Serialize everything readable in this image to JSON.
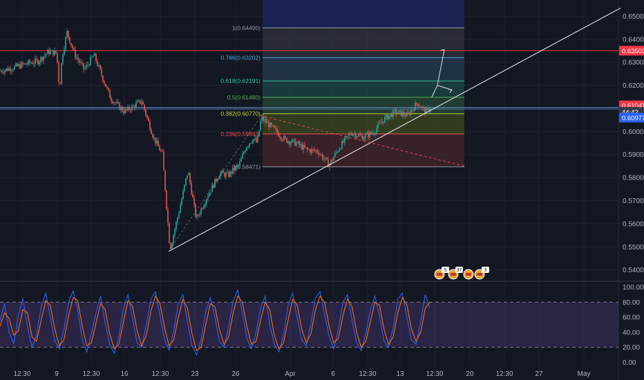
{
  "colors": {
    "background": "#131722",
    "grid": "#1e222d",
    "up": "#26a69a",
    "down": "#ef5350",
    "axis_text": "#b2b5be",
    "horizontal_red": "#f23645",
    "horizontal_blue": "#5b7fbf",
    "trendline": "#e0e3eb",
    "stoch_k": "#2962ff",
    "stoch_d": "#ff6d00",
    "stoch_band": "#7e57c2"
  },
  "chart_data": [
    {
      "type": "candlestick",
      "title": "",
      "x_tick_labels": [
        "12:30",
        "9",
        "12:30",
        "16",
        "12:30",
        "23",
        "26",
        "Apr",
        "6",
        "12:30",
        "13",
        "12:30",
        "20",
        "12:30",
        "27",
        "May"
      ],
      "y_tick_labels": [
        "0.65000",
        "0.64000",
        "0.63000",
        "0.62000",
        "0.61000",
        "0.60000",
        "0.59000",
        "0.58000",
        "0.57000",
        "0.56000",
        "0.55000",
        "0.54000"
      ],
      "ylim": [
        0.536,
        0.657
      ],
      "grid": true,
      "price_path": [
        [
          0,
          0.6262
        ],
        [
          20,
          0.6278
        ],
        [
          40,
          0.6295
        ],
        [
          55,
          0.6305
        ],
        [
          70,
          0.6345
        ],
        [
          82,
          0.634
        ],
        [
          86,
          0.618
        ],
        [
          90,
          0.633
        ],
        [
          97,
          0.643
        ],
        [
          108,
          0.6335
        ],
        [
          122,
          0.6268
        ],
        [
          136,
          0.6332
        ],
        [
          146,
          0.6252
        ],
        [
          160,
          0.6145
        ],
        [
          180,
          0.6085
        ],
        [
          205,
          0.6132
        ],
        [
          222,
          0.5975
        ],
        [
          235,
          0.59
        ],
        [
          246,
          0.549
        ],
        [
          258,
          0.564
        ],
        [
          272,
          0.583
        ],
        [
          284,
          0.562
        ],
        [
          300,
          0.572
        ],
        [
          318,
          0.582
        ],
        [
          330,
          0.581
        ],
        [
          346,
          0.5855
        ],
        [
          356,
          0.5935
        ],
        [
          366,
          0.597
        ],
        [
          372,
          0.595
        ],
        [
          378,
          0.606
        ],
        [
          396,
          0.601
        ],
        [
          412,
          0.5965
        ],
        [
          428,
          0.595
        ],
        [
          444,
          0.592
        ],
        [
          460,
          0.5915
        ],
        [
          476,
          0.5855
        ],
        [
          492,
          0.5935
        ],
        [
          508,
          0.5995
        ],
        [
          524,
          0.5975
        ],
        [
          540,
          0.5995
        ],
        [
          556,
          0.6055
        ],
        [
          572,
          0.6085
        ],
        [
          590,
          0.607
        ],
        [
          604,
          0.6125
        ],
        [
          616,
          0.6085
        ],
        [
          624,
          0.6104
        ]
      ],
      "horizontal_lines": [
        {
          "price": 0.63503,
          "label": "0.63503",
          "color": "#f23645"
        },
        {
          "price": 0.61041,
          "label": "0.61041",
          "color": "#5b7fbf"
        },
        {
          "price": 0.60977,
          "label": "0.60977",
          "color": "#5b7fbf"
        }
      ],
      "price_badges": [
        {
          "label": "0.63503",
          "color": "#f23645",
          "price": 0.63503
        },
        {
          "label": "0.61041",
          "color": "#f23645",
          "price": 0.6113
        },
        {
          "label": "44:42",
          "color": "#363a45",
          "price": 0.6085
        },
        {
          "label": "0.60977",
          "color": "#2962ff",
          "price": 0.606
        }
      ],
      "fibonacci": [
        {
          "label": "1(0.64490)",
          "price": 0.6449,
          "color": "#9598a1"
        },
        {
          "label": "0.786(0.63202)",
          "price": 0.63202,
          "color": "#4fa3e0"
        },
        {
          "label": "0.618(0.62191)",
          "price": 0.62191,
          "color": "#26c6a0"
        },
        {
          "label": "0.5(0.61480)",
          "price": 0.6148,
          "color": "#4caf50"
        },
        {
          "label": "0.382(0.60770)",
          "price": 0.6077,
          "color": "#c6d23a"
        },
        {
          "label": "0.236(0.59893)",
          "price": 0.59893,
          "color": "#ef5350"
        },
        {
          "label": "0(0.58471)",
          "price": 0.58471,
          "color": "#9598a1"
        }
      ],
      "trendline": {
        "from": [
          244,
          0.548
        ],
        "to": [
          898,
          0.6535
        ]
      },
      "dashed_line": {
        "from": [
          376,
          0.607
        ],
        "to": [
          672,
          0.585
        ]
      },
      "arrows": [
        {
          "from": [
            625,
            0.615
          ],
          "mid": [
            633,
            0.62
          ],
          "to": [
            643,
            0.6355
          ]
        },
        {
          "from": [
            633,
            0.62
          ],
          "to": [
            654,
            0.618
          ]
        }
      ],
      "event_badges": [
        {
          "x": 636,
          "label": "5"
        },
        {
          "x": 656,
          "label": "37"
        },
        {
          "x": 678,
          "label": ""
        },
        {
          "x": 694,
          "label": "3"
        }
      ]
    },
    {
      "type": "line",
      "title": "",
      "y_tick_labels": [
        "100.00",
        "80.00",
        "60.00",
        "40.00",
        "20.00",
        "0.00"
      ],
      "ylim": [
        -5,
        105
      ],
      "bands": {
        "upper": 80,
        "lower": 20
      },
      "series": [
        {
          "values": [
            55,
            78,
            40,
            25,
            62,
            85,
            48,
            20,
            36,
            74,
            92,
            60,
            28,
            18,
            44,
            80,
            95,
            70,
            30,
            14,
            38,
            66,
            88,
            52,
            24,
            12,
            34,
            72,
            90,
            58,
            26,
            20,
            50,
            84,
            94,
            62,
            30,
            16,
            42,
            78,
            90,
            54,
            22,
            10,
            30,
            68,
            86,
            60,
            28,
            20,
            48,
            82,
            96,
            66,
            32,
            18,
            40,
            72,
            88,
            50,
            24,
            14,
            36,
            76,
            92,
            58,
            30,
            22,
            52,
            86,
            94,
            64,
            34,
            18,
            44,
            80,
            90,
            56,
            26,
            16,
            38,
            70,
            88,
            62,
            28,
            20,
            46,
            84,
            92,
            60,
            30,
            24,
            54,
            90,
            72
          ]
        },
        {
          "values": [
            48,
            66,
            58,
            36,
            42,
            70,
            66,
            34,
            28,
            56,
            82,
            76,
            44,
            22,
            30,
            62,
            86,
            82,
            48,
            22,
            26,
            52,
            78,
            70,
            38,
            18,
            24,
            54,
            82,
            74,
            42,
            22,
            36,
            68,
            88,
            78,
            46,
            22,
            30,
            60,
            84,
            72,
            38,
            16,
            20,
            50,
            78,
            74,
            44,
            24,
            34,
            66,
            88,
            80,
            48,
            24,
            28,
            56,
            80,
            70,
            36,
            18,
            26,
            56,
            84,
            76,
            44,
            26,
            38,
            70,
            88,
            80,
            48,
            26,
            32,
            62,
            84,
            74,
            40,
            20,
            28,
            54,
            80,
            76,
            44,
            24,
            34,
            66,
            86,
            76,
            44,
            28,
            40,
            72,
            80
          ]
        }
      ]
    }
  ]
}
